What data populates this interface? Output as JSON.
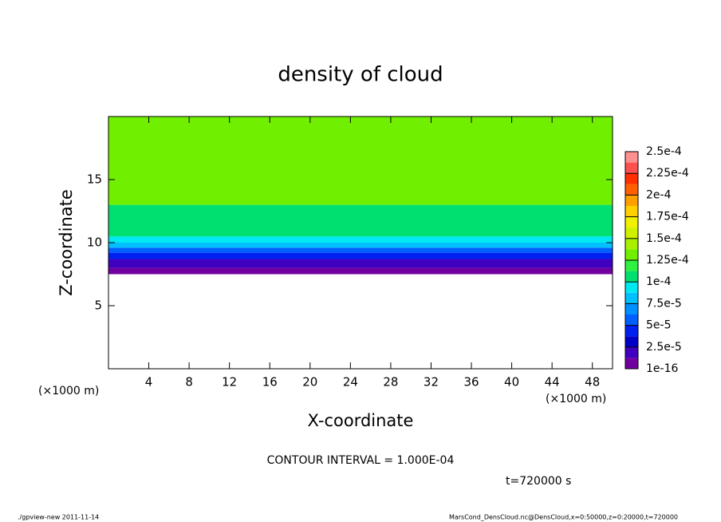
{
  "chart_data": {
    "type": "contour",
    "title": "density of cloud",
    "xlabel": "X-coordinate",
    "ylabel": "Z-coordinate",
    "x_unit": "(×1000 m)",
    "contour_note": "CONTOUR INTERVAL = 1.000E-04",
    "time_label": "t=720000 s",
    "footer_left": "./gpview-new  2011-11-14",
    "footer_right": "MarsCond_DensCloud.nc@DensCloud,x=0:50000,z=0:20000,t=720000",
    "xlim": [
      0,
      50
    ],
    "xticks": [
      4,
      8,
      12,
      16,
      20,
      24,
      28,
      32,
      36,
      40,
      44,
      48
    ],
    "ylim": [
      0,
      20
    ],
    "yticks": [
      5,
      10,
      15
    ],
    "y_edges": [
      7.5,
      8,
      8.7,
      9.2,
      9.6,
      10,
      10.5,
      13,
      20
    ],
    "values": [
      1e-05,
      2e-05,
      4e-05,
      6e-05,
      8e-05,
      9.5e-05,
      0.00011,
      0.00013
    ],
    "levels": [
      {
        "value": 1e-16,
        "label": "1e-16"
      },
      {
        "value": 2.5e-05,
        "label": "2.5e-5"
      },
      {
        "value": 5e-05,
        "label": "5e-5"
      },
      {
        "value": 7.5e-05,
        "label": "7.5e-5"
      },
      {
        "value": 0.0001,
        "label": "1e-4"
      },
      {
        "value": 0.000125,
        "label": "1.25e-4"
      },
      {
        "value": 0.00015,
        "label": "1.5e-4"
      },
      {
        "value": 0.000175,
        "label": "1.75e-4"
      },
      {
        "value": 0.0002,
        "label": "2e-4"
      },
      {
        "value": 0.000225,
        "label": "2.25e-4"
      },
      {
        "value": 0.00025,
        "label": "2.5e-4"
      }
    ],
    "colors": [
      "#7000a0",
      "#4000c0",
      "#0000c8",
      "#0020f0",
      "#0060ff",
      "#0090ff",
      "#00c0ff",
      "#00e8f0",
      "#00e070",
      "#30f040",
      "#70f000",
      "#a8f000",
      "#d0f000",
      "#f0f000",
      "#ffd000",
      "#ffa000",
      "#ff6000",
      "#ff3000",
      "#ff5050",
      "#ff9090"
    ]
  }
}
